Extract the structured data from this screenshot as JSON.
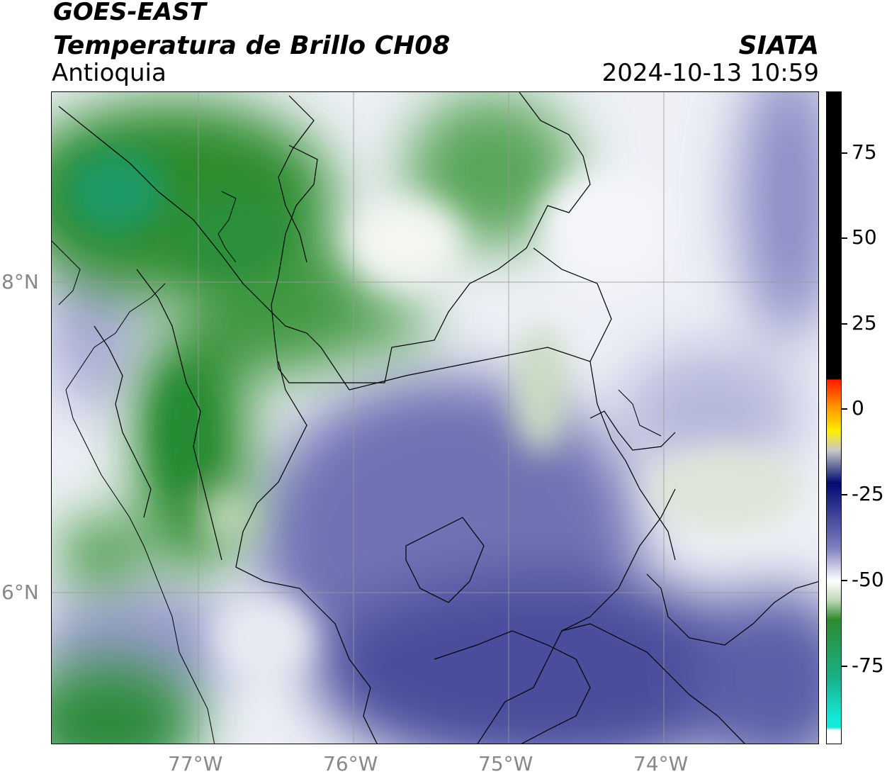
{
  "header": {
    "satellite": "GOES-EAST",
    "product": "Temperatura de Brillo CH08",
    "region": "Antioquia",
    "organization": "SIATA",
    "timestamp": "2024-10-13 10:59"
  },
  "map": {
    "lon_range": [
      -77.95,
      -73.0
    ],
    "lat_range": [
      5.0,
      9.2
    ],
    "lon_ticks": [
      {
        "value": -77,
        "label": "77°W"
      },
      {
        "value": -76,
        "label": "76°W"
      },
      {
        "value": -75,
        "label": "75°W"
      },
      {
        "value": -74,
        "label": "74°W"
      }
    ],
    "lat_ticks": [
      {
        "value": 8,
        "label": "8°N"
      },
      {
        "value": 6,
        "label": "6°N"
      }
    ],
    "gridlines": true
  },
  "colorbar": {
    "range": [
      -97,
      92
    ],
    "ticks": [
      {
        "value": 75,
        "label": "75"
      },
      {
        "value": 50,
        "label": "50"
      },
      {
        "value": 25,
        "label": "25"
      },
      {
        "value": 0,
        "label": "0"
      },
      {
        "value": -25,
        "label": "-25"
      },
      {
        "value": -50,
        "label": "-50"
      },
      {
        "value": -75,
        "label": "-75"
      }
    ],
    "colors": {
      "warm_black": "#000000",
      "red": "#ff1a00",
      "orange": "#ff8c00",
      "yellow": "#ffee00",
      "dark_blue": "#000a70",
      "periwinkle": "#7f80c0",
      "white": "#ffffff",
      "green": "#2e8b2e",
      "teal": "#1ab089",
      "cyan": "#14e8d8"
    }
  }
}
